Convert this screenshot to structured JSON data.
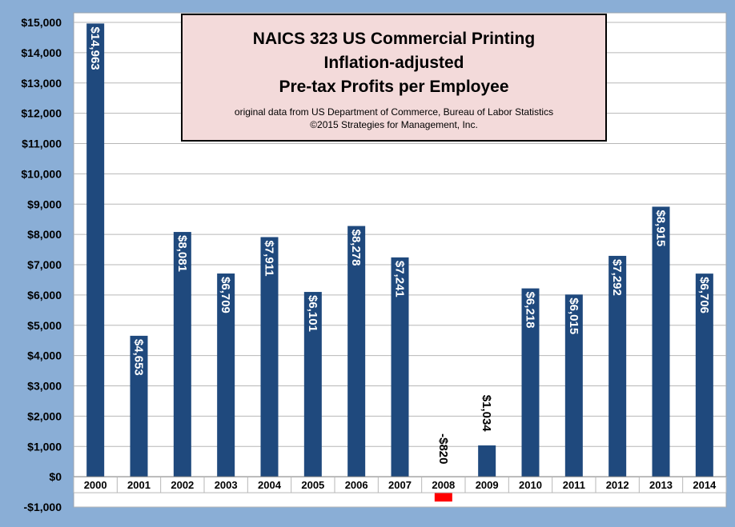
{
  "chart_data": {
    "type": "bar",
    "title_lines": [
      "NAICS 323 US Commercial Printing",
      "Inflation-adjusted",
      "Pre-tax Profits per Employee"
    ],
    "subtitle_lines": [
      "original data from US Department of Commerce, Bureau of Labor Statistics",
      "©2015 Strategies for Management, Inc."
    ],
    "categories": [
      "2000",
      "2001",
      "2002",
      "2003",
      "2004",
      "2005",
      "2006",
      "2007",
      "2008",
      "2009",
      "2010",
      "2011",
      "2012",
      "2013",
      "2014"
    ],
    "values": [
      14963,
      4653,
      8081,
      6709,
      7911,
      6101,
      8278,
      7241,
      -820,
      1034,
      6218,
      6015,
      7292,
      8915,
      6706
    ],
    "data_labels": [
      "$14,963",
      "$4,653",
      "$8,081",
      "$6,709",
      "$7,911",
      "$6,101",
      "$8,278",
      "$7,241",
      "-$820",
      "$1,034",
      "$6,218",
      "$6,015",
      "$7,292",
      "$8,915",
      "$6,706"
    ],
    "ylim": [
      -1000,
      15000
    ],
    "yticks": [
      -1000,
      0,
      1000,
      2000,
      3000,
      4000,
      5000,
      6000,
      7000,
      8000,
      9000,
      10000,
      11000,
      12000,
      13000,
      14000,
      15000
    ],
    "ytick_labels": [
      "-$1,000",
      "$0",
      "$1,000",
      "$2,000",
      "$3,000",
      "$4,000",
      "$5,000",
      "$6,000",
      "$7,000",
      "$8,000",
      "$9,000",
      "$10,000",
      "$11,000",
      "$12,000",
      "$13,000",
      "$14,000",
      "$15,000"
    ],
    "grid": true,
    "colors": {
      "positive": "#1f497d",
      "negative": "#ff0000",
      "plot_bg": "#ffffff",
      "page_bg": "#8aaed6",
      "title_bg": "#f3dada"
    }
  }
}
